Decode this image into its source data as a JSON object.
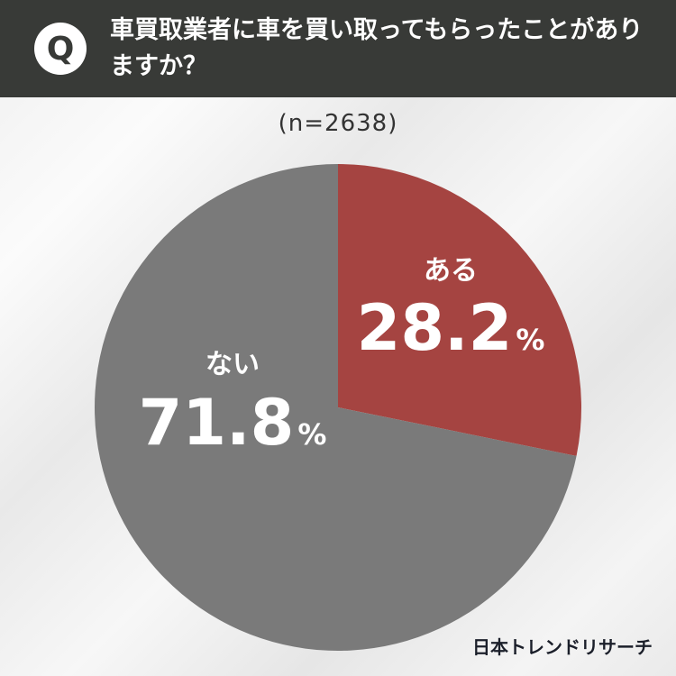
{
  "header": {
    "badge": "Q",
    "question": "車買取業者に車を買い取ってもらったことがありますか？"
  },
  "sample": "(n=2638)",
  "colors": {
    "header_bg": "#383a37",
    "yes": "#a54441",
    "no": "#7a7a7a"
  },
  "chart_data": {
    "type": "pie",
    "slices": [
      {
        "label": "ある",
        "value": 28.2,
        "value_text": "28.2",
        "unit": "%"
      },
      {
        "label": "ない",
        "value": 71.8,
        "value_text": "71.8",
        "unit": "%"
      }
    ]
  },
  "brand": "日本トレンドリサーチ"
}
